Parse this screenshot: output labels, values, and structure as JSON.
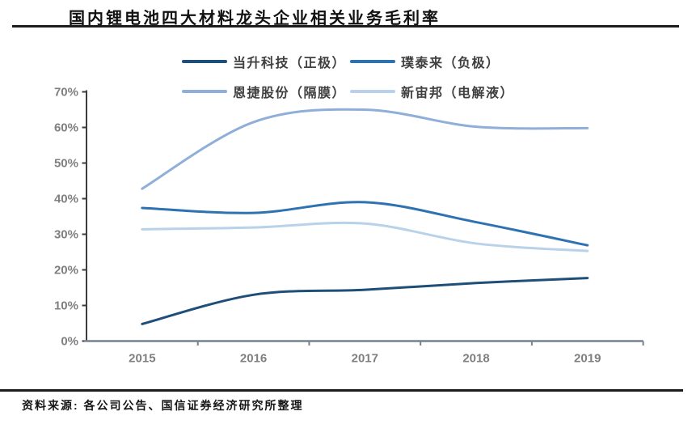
{
  "page": {
    "title": "国内锂电池四大材料龙头企业相关业务毛利率",
    "source_note": "资料来源: 各公司公告、国信证券经济研究所整理"
  },
  "chart_data": {
    "type": "line",
    "title": "国内锂电池四大材料龙头企业相关业务毛利率",
    "categories": [
      "2015",
      "2016",
      "2017",
      "2018",
      "2019"
    ],
    "series": [
      {
        "name": "当升科技（正极）",
        "color": "#1f4e79",
        "values": [
          4.8,
          13.0,
          14.4,
          16.3,
          17.7
        ]
      },
      {
        "name": "璞泰来（负极）",
        "color": "#2f72b2",
        "values": [
          37.4,
          36.0,
          39.0,
          33.4,
          26.9
        ]
      },
      {
        "name": "恩捷股份（隔膜）",
        "color": "#8fafd9",
        "values": [
          42.8,
          61.5,
          65.0,
          60.2,
          59.8
        ]
      },
      {
        "name": "新宙邦（电解液）",
        "color": "#b9d2ea",
        "values": [
          31.4,
          31.9,
          33.0,
          27.4,
          25.3
        ]
      }
    ],
    "xlabel": "",
    "ylabel": "",
    "ylim": [
      0,
      70
    ],
    "y_ticks": [
      "0%",
      "10%",
      "20%",
      "30%",
      "40%",
      "50%",
      "60%",
      "70%"
    ],
    "y_tick_step": 10,
    "grid": false,
    "legend_position": "top",
    "x_axis_color": "#76828f",
    "y_axis_color": "#3c3c3c",
    "tick_label_color": "#7f7f7f"
  }
}
